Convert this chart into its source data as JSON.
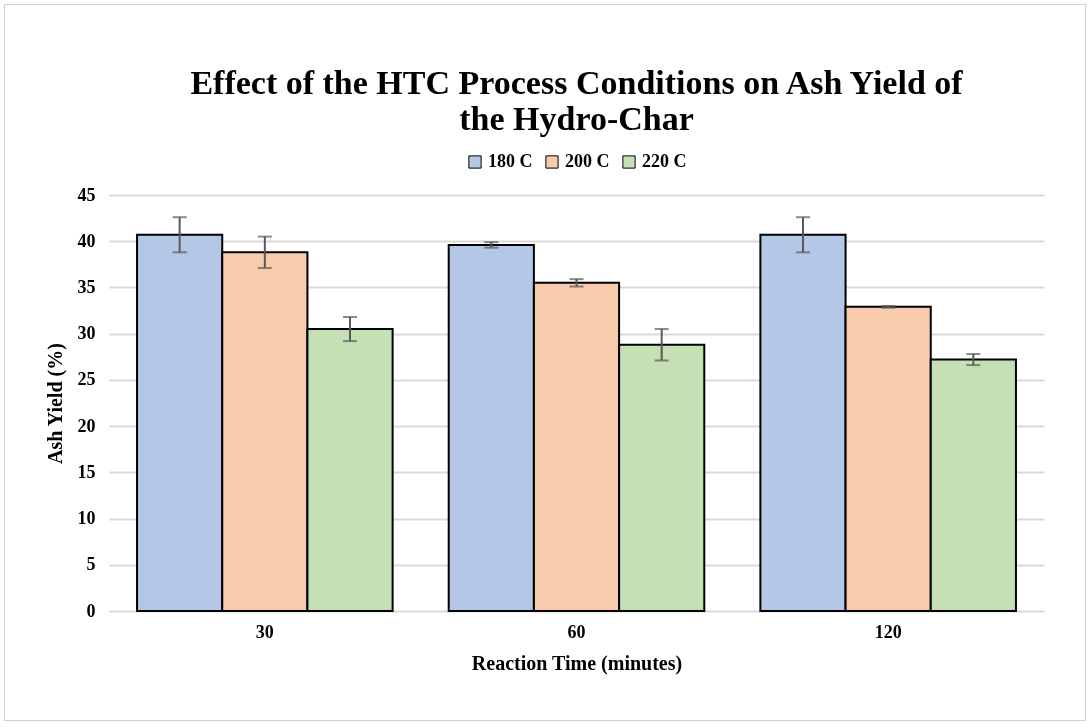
{
  "chart_data": {
    "type": "bar",
    "title": "Effect of the HTC Process Conditions on Ash Yield of the Hydro-Char",
    "xlabel": "Reaction Time (minutes)",
    "ylabel": "Ash Yield (%)",
    "categories": [
      "30",
      "60",
      "120"
    ],
    "series": [
      {
        "name": "180 C",
        "color": "#b4c7e7",
        "values": [
          40.7,
          39.6,
          40.7
        ],
        "errors": [
          1.9,
          0.3,
          1.9
        ]
      },
      {
        "name": "200 C",
        "color": "#f8cbad",
        "values": [
          38.8,
          35.5,
          32.9
        ],
        "errors": [
          1.7,
          0.4,
          0.1
        ]
      },
      {
        "name": "220 C",
        "color": "#c5e0b4",
        "values": [
          30.5,
          28.8,
          27.2
        ],
        "errors": [
          1.3,
          1.7,
          0.6
        ]
      }
    ],
    "ylim": [
      0,
      45
    ],
    "yticks": [
      0,
      5,
      10,
      15,
      20,
      25,
      30,
      35,
      40,
      45
    ],
    "grid": "y",
    "legend": "top"
  }
}
